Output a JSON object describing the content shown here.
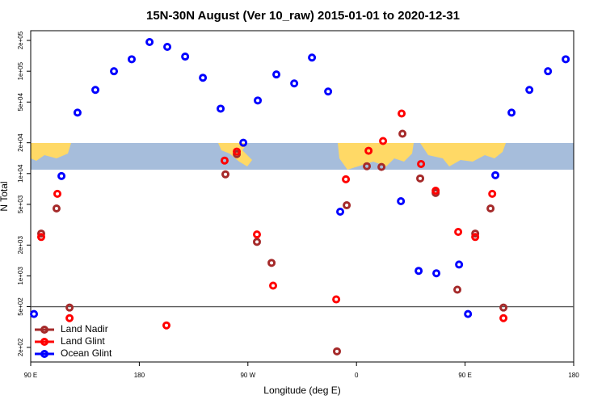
{
  "chart_data": {
    "type": "scatter",
    "title": "15N-30N August (Ver 10_raw)   2015-01-01 to 2020-12-31",
    "xlabel": "Longitude (deg E)",
    "ylabel": "N Total",
    "xlim": [
      90,
      540
    ],
    "xticks": [
      {
        "value": 90,
        "label": "90 E"
      },
      180,
      {
        "value": 270,
        "label": "90 W"
      },
      {
        "value": 360,
        "label": "0"
      },
      {
        "value": 450,
        "label": "90 E"
      },
      {
        "value": 540,
        "label": "180"
      }
    ],
    "ylim": [
      144,
      249000
    ],
    "log_y": true,
    "yticks": [
      {
        "value": 200,
        "label": "2e+02"
      },
      {
        "value": 500,
        "label": "5e+02"
      },
      {
        "value": 1000,
        "label": "1e+03"
      },
      {
        "value": 2000,
        "label": "2e+03"
      },
      {
        "value": 5000,
        "label": "5e+03"
      },
      {
        "value": 10000,
        "label": "1e+04"
      },
      {
        "value": 20000,
        "label": "2e+04"
      },
      {
        "value": 50000,
        "label": "5e+04"
      },
      {
        "value": 100000,
        "label": "1e+05"
      },
      {
        "value": 200000,
        "label": "2e+05"
      }
    ],
    "hline": 500,
    "legend": "bottom-left",
    "series": [
      {
        "name": "Land Nadir",
        "color": "#a52a2a",
        "x": [
          98.7,
          111.4,
          122.2,
          251.4,
          260.8,
          277.5,
          289.6,
          343.8,
          351.9,
          368.6,
          380.7,
          398.1,
          412.8,
          425.6,
          443.6,
          458.4,
          471.1,
          481.8
        ],
        "values": [
          2590,
          4560,
          490,
          9820,
          15500,
          2150,
          1340,
          183,
          4900,
          11800,
          11600,
          24500,
          8960,
          6460,
          733,
          2590,
          4560,
          490
        ]
      },
      {
        "name": "Land Glint",
        "color": "#ff0000",
        "x": [
          98.7,
          112.1,
          122.2,
          202.5,
          250.7,
          260.8,
          277.5,
          290.9,
          343.2,
          351.2,
          370,
          382,
          397.4,
          413.5,
          425.6,
          444.3,
          458.4,
          472.5,
          481.8
        ],
        "values": [
          2400,
          6340,
          386,
          328,
          13400,
          16400,
          2540,
          803,
          589,
          8790,
          16700,
          20800,
          38600,
          12400,
          6800,
          2690,
          2400,
          6340,
          386
        ]
      },
      {
        "name": "Ocean Glint",
        "color": "#0000ff",
        "x": [
          92.7,
          115.5,
          128.8,
          143.6,
          159,
          173.7,
          188.5,
          203.2,
          218,
          232.7,
          247.4,
          266.2,
          278.2,
          293.6,
          308.4,
          323.1,
          336.5,
          346.5,
          396.8,
          411.5,
          426.2,
          445,
          452.4,
          475.1,
          488.5,
          503.3,
          518.7,
          533.4
        ],
        "values": [
          424,
          9460,
          39400,
          65700,
          100000,
          131000,
          193000,
          173000,
          139000,
          86400,
          43100,
          20000,
          51800,
          93000,
          76000,
          136000,
          63400,
          4240,
          5370,
          1120,
          1060,
          1290,
          424,
          9640,
          39400,
          65700,
          100000,
          131000
        ]
      }
    ]
  }
}
